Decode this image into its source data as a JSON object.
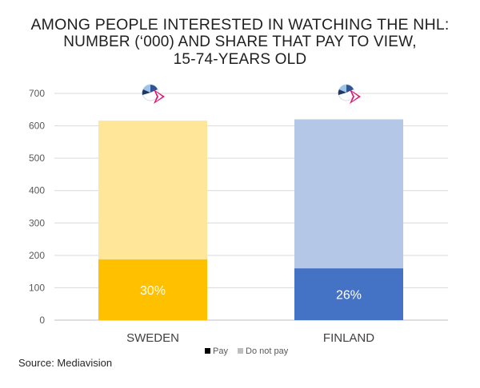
{
  "title": {
    "line1": "AMONG PEOPLE INTERESTED IN WATCHING THE NHL:",
    "line2": "NUMBER (‘000) AND SHARE THAT PAY TO VIEW,",
    "line3": "15-74-YEARS OLD"
  },
  "source": "Source: Mediavision",
  "colors": {
    "sweden_pay": "#FFC000",
    "sweden_not_pay": "#FFE699",
    "finland_pay": "#4472C4",
    "finland_not_pay": "#B4C7E7",
    "legend_pay": "#000000",
    "legend_not_pay": "#BFBFBF",
    "gridline": "#D9D9D9",
    "axis_text": "#595959"
  },
  "chart_data": {
    "type": "bar",
    "stacked": true,
    "categories": [
      "SWEDEN",
      "FINLAND"
    ],
    "series": [
      {
        "name": "Pay",
        "values": [
          188,
          160
        ],
        "labels": [
          "30%",
          "26%"
        ]
      },
      {
        "name": "Do not pay",
        "values": [
          428,
          460
        ]
      }
    ],
    "totals": [
      616,
      620
    ],
    "ylim": [
      0,
      700
    ],
    "yticks": [
      0,
      100,
      200,
      300,
      400,
      500,
      600,
      700
    ],
    "grid": true,
    "legend": "bottom"
  }
}
